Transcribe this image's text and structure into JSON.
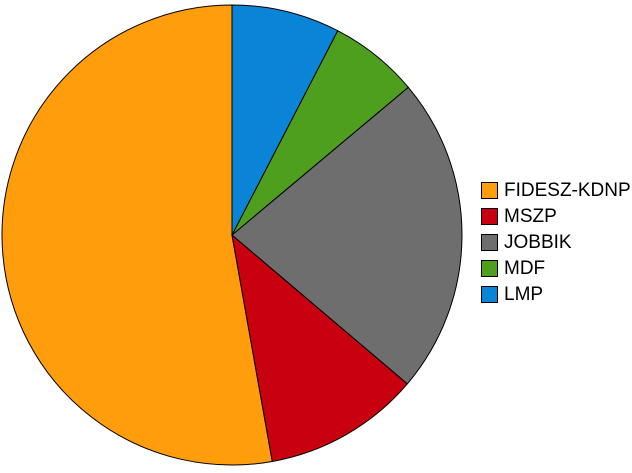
{
  "chart_data": {
    "type": "pie",
    "title": "",
    "legend_position": "right",
    "background_color": "#FFFFFF",
    "slice_border_color": "#000000",
    "start_angle_deg": 90,
    "direction": "counterclockwise",
    "slices": [
      {
        "label": "FIDESZ-KDNP",
        "value": 52.8,
        "color": "#FF9D0D"
      },
      {
        "label": "MSZP",
        "value": 11.0,
        "color": "#C8000F"
      },
      {
        "label": "JOBBIK",
        "value": 22.3,
        "color": "#6E6E6E"
      },
      {
        "label": "MDF",
        "value": 6.3,
        "color": "#4F9F1E"
      },
      {
        "label": "LMP",
        "value": 7.6,
        "color": "#0A84D6"
      }
    ]
  }
}
